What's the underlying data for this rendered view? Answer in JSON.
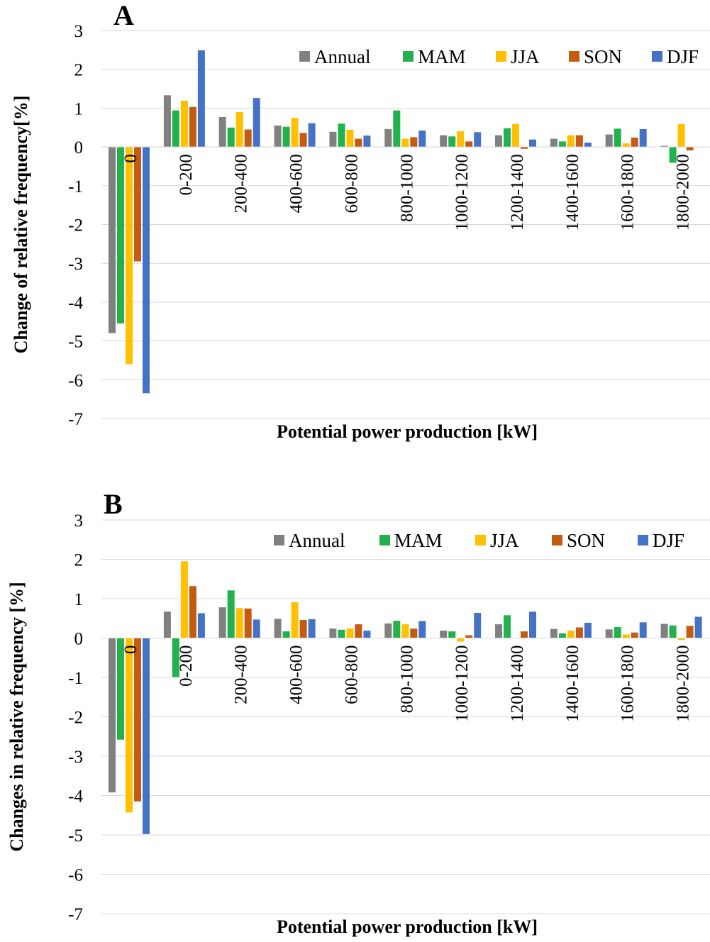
{
  "chart_data": [
    {
      "type": "bar",
      "panel_label": "A",
      "ylabel": "Change of relative frequency[%]",
      "xlabel": "Potential power production [kW]",
      "ylim": [
        -7,
        3
      ],
      "yticks": [
        3,
        2,
        1,
        0,
        -1,
        -2,
        -3,
        -4,
        -5,
        -6,
        -7
      ],
      "grid": true,
      "legend": "top-right",
      "categories": [
        "0",
        "0-200",
        "200-400",
        "400-600",
        "600-800",
        "800-1000",
        "1000-1200",
        "1200-1400",
        "1400-1600",
        "1600-1800",
        "1800-2000"
      ],
      "series": [
        {
          "name": "Annual",
          "color": "#808080",
          "values": [
            -4.8,
            1.33,
            0.77,
            0.55,
            0.39,
            0.46,
            0.3,
            0.3,
            0.21,
            0.32,
            0.03
          ]
        },
        {
          "name": "MAM",
          "color": "#22b14c",
          "values": [
            -4.55,
            0.94,
            0.5,
            0.52,
            0.6,
            0.94,
            0.27,
            0.48,
            0.14,
            0.47,
            -0.41
          ]
        },
        {
          "name": "JJA",
          "color": "#ffc000",
          "values": [
            -5.6,
            1.19,
            0.9,
            0.75,
            0.44,
            0.21,
            0.4,
            0.59,
            0.3,
            0.09,
            0.59
          ]
        },
        {
          "name": "SON",
          "color": "#c55a11",
          "values": [
            -2.95,
            1.03,
            0.45,
            0.36,
            0.21,
            0.25,
            0.14,
            -0.05,
            0.3,
            0.24,
            -0.09
          ]
        },
        {
          "name": "DJF",
          "color": "#4472c4",
          "values": [
            -6.35,
            2.49,
            1.26,
            0.61,
            0.29,
            0.42,
            0.38,
            0.19,
            0.11,
            0.46,
            0.0
          ]
        }
      ]
    },
    {
      "type": "bar",
      "panel_label": "B",
      "ylabel": "Changes in relative frequency [%]",
      "xlabel": "Potential power production [kW]",
      "ylim": [
        -7,
        3
      ],
      "yticks": [
        3,
        2,
        1,
        0,
        -1,
        -2,
        -3,
        -4,
        -5,
        -6,
        -7
      ],
      "grid": true,
      "legend": "top-right",
      "categories": [
        "0",
        "0-200",
        "200-400",
        "400-600",
        "600-800",
        "800-1000",
        "1000-1200",
        "1200-1400",
        "1400-1600",
        "1600-1800",
        "1800-2000"
      ],
      "series": [
        {
          "name": "Annual",
          "color": "#808080",
          "values": [
            -3.92,
            0.67,
            0.78,
            0.49,
            0.24,
            0.37,
            0.19,
            0.35,
            0.23,
            0.22,
            0.36
          ]
        },
        {
          "name": "MAM",
          "color": "#22b14c",
          "values": [
            -2.58,
            -0.99,
            1.21,
            0.17,
            0.21,
            0.44,
            0.17,
            0.58,
            0.12,
            0.28,
            0.32
          ]
        },
        {
          "name": "JJA",
          "color": "#ffc000",
          "values": [
            -4.43,
            1.95,
            0.76,
            0.91,
            0.24,
            0.35,
            -0.09,
            0.0,
            0.19,
            0.09,
            -0.05
          ]
        },
        {
          "name": "SON",
          "color": "#c55a11",
          "values": [
            -4.15,
            1.32,
            0.75,
            0.46,
            0.35,
            0.24,
            0.07,
            0.17,
            0.27,
            0.14,
            0.31
          ]
        },
        {
          "name": "DJF",
          "color": "#4472c4",
          "values": [
            -4.98,
            0.63,
            0.47,
            0.48,
            0.19,
            0.43,
            0.64,
            0.67,
            0.39,
            0.4,
            0.54
          ]
        }
      ]
    }
  ]
}
